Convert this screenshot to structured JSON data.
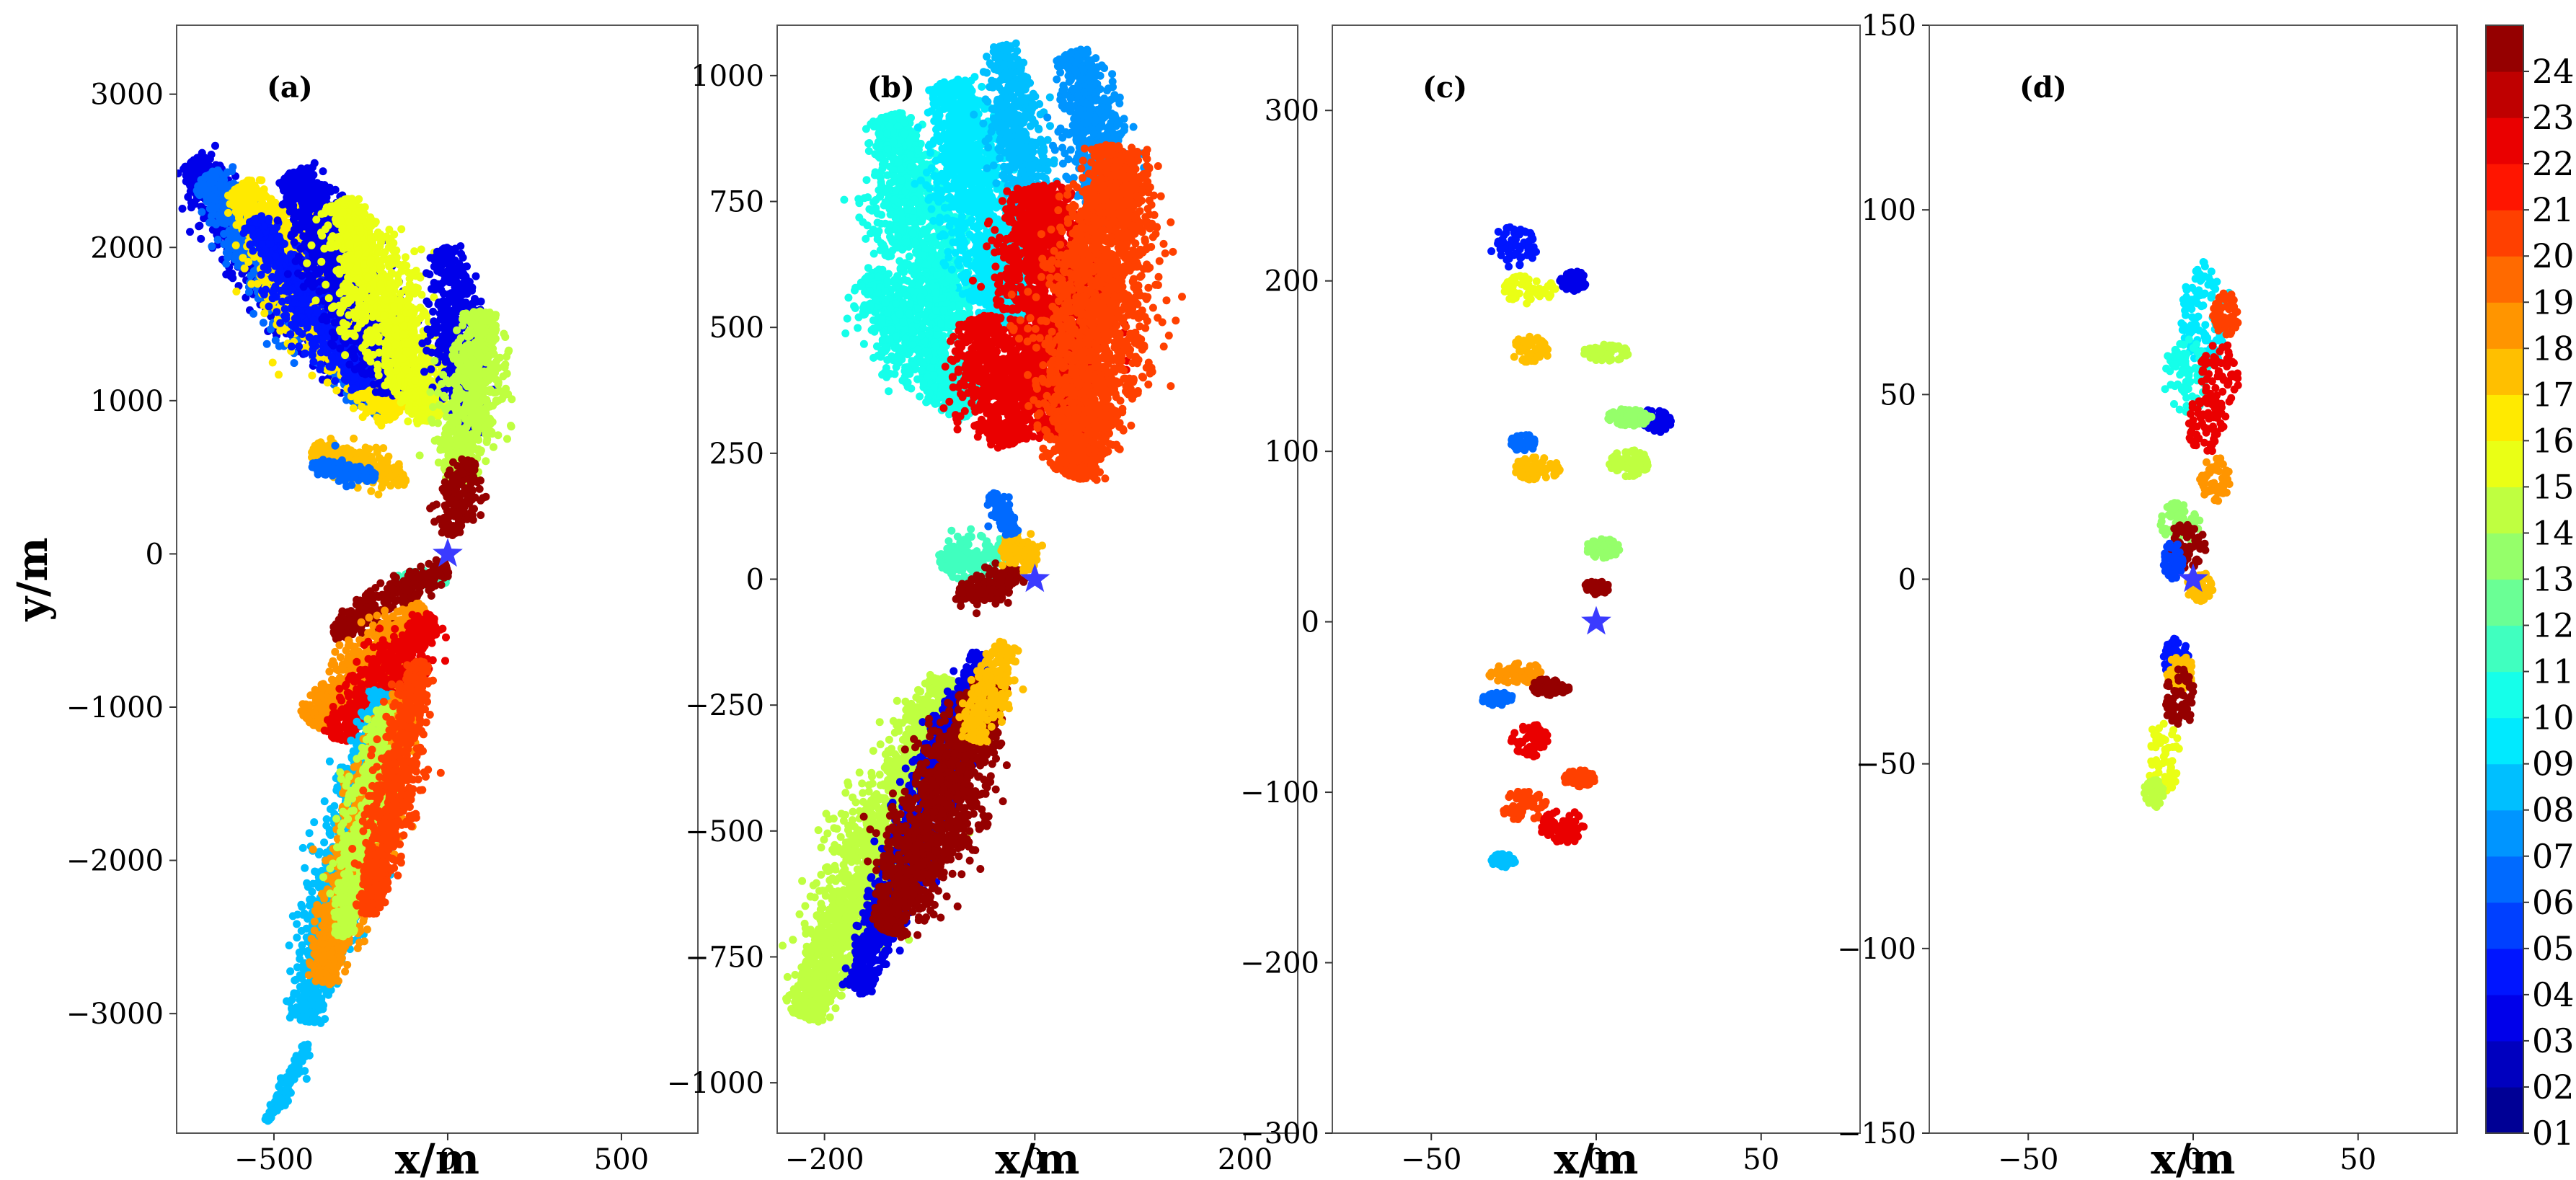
{
  "chart_data": [
    {
      "type": "scatter",
      "panel_label": "(a)",
      "xlabel": "x/m",
      "ylabel": "y/m",
      "xlim": [
        -780,
        720
      ],
      "ylim": [
        -3780,
        3450
      ],
      "xticks": [
        -500,
        0,
        500
      ],
      "xtick_labels": [
        "−500",
        "0",
        "500"
      ],
      "yticks": [
        -3000,
        -2000,
        -1000,
        0,
        1000,
        2000,
        3000
      ],
      "ytick_labels": [
        "−3000",
        "−2000",
        "−1000",
        "0",
        "1000",
        "2000",
        "3000"
      ],
      "origin_marker": {
        "shape": "star",
        "x": 0,
        "y": 0,
        "color": "#3b3bff"
      },
      "clusters": [
        {
          "hour": 3,
          "x1": -740,
          "y1": 2560,
          "x2": -200,
          "y2": 1060,
          "w": 0.07
        },
        {
          "hour": 6,
          "x1": -700,
          "y1": 2460,
          "x2": -170,
          "y2": 950,
          "w": 0.065
        },
        {
          "hour": 16,
          "x1": -600,
          "y1": 2400,
          "x2": -150,
          "y2": 900,
          "w": 0.075
        },
        {
          "hour": 4,
          "x1": -560,
          "y1": 2180,
          "x2": -240,
          "y2": 1100,
          "w": 0.05
        },
        {
          "hour": 3,
          "x1": -440,
          "y1": 2500,
          "x2": -130,
          "y2": 1050,
          "w": 0.07
        },
        {
          "hour": 15,
          "x1": -310,
          "y1": 2300,
          "x2": -40,
          "y2": 880,
          "w": 0.075
        },
        {
          "hour": 3,
          "x1": 0,
          "y1": 2000,
          "x2": 60,
          "y2": 780,
          "w": 0.05
        },
        {
          "hour": 14,
          "x1": 110,
          "y1": 1580,
          "x2": 30,
          "y2": 480,
          "w": 0.06
        },
        {
          "hour": 24,
          "x1": 60,
          "y1": 620,
          "x2": 0,
          "y2": 120,
          "w": 0.04
        },
        {
          "hour": 17,
          "x1": -390,
          "y1": 680,
          "x2": -120,
          "y2": 480,
          "w": 0.035
        },
        {
          "hour": 6,
          "x1": -390,
          "y1": 580,
          "x2": -210,
          "y2": 500,
          "w": 0.02
        },
        {
          "hour": 11,
          "x1": -150,
          "y1": -170,
          "x2": 0,
          "y2": -160,
          "w": 0.015
        },
        {
          "hour": 24,
          "x1": -330,
          "y1": -520,
          "x2": 0,
          "y2": -80,
          "w": 0.035
        },
        {
          "hour": 18,
          "x1": -400,
          "y1": -1100,
          "x2": -70,
          "y2": -350,
          "w": 0.05
        },
        {
          "hour": 22,
          "x1": -330,
          "y1": -1200,
          "x2": -40,
          "y2": -420,
          "w": 0.05
        },
        {
          "hour": 8,
          "x1": -410,
          "y1": -3050,
          "x2": -180,
          "y2": -900,
          "w": 0.055
        },
        {
          "hour": 18,
          "x1": -360,
          "y1": -2800,
          "x2": -130,
          "y2": -920,
          "w": 0.055
        },
        {
          "hour": 14,
          "x1": -300,
          "y1": -2500,
          "x2": -180,
          "y2": -1000,
          "w": 0.04
        },
        {
          "hour": 20,
          "x1": -230,
          "y1": -2350,
          "x2": -80,
          "y2": -700,
          "w": 0.045
        },
        {
          "hour": 8,
          "x1": -520,
          "y1": -3700,
          "x2": -400,
          "y2": -3200,
          "w": 0.015
        }
      ]
    },
    {
      "type": "scatter",
      "panel_label": "(b)",
      "xlabel": "x/m",
      "ylabel": "",
      "xlim": [
        -245,
        250
      ],
      "ylim": [
        -1100,
        1100
      ],
      "xticks": [
        -200,
        0,
        200
      ],
      "xtick_labels": [
        "−200",
        "0",
        "200"
      ],
      "yticks": [
        -1000,
        -750,
        -500,
        -250,
        0,
        250,
        500,
        750,
        1000
      ],
      "ytick_labels": [
        "−1000",
        "−750",
        "−500",
        "−250",
        "0",
        "250",
        "500",
        "750",
        "1000"
      ],
      "origin_marker": {
        "shape": "star",
        "x": 0,
        "y": 0,
        "color": "#3b3bff"
      },
      "clusters": [
        {
          "hour": 10,
          "x1": -140,
          "y1": 920,
          "x2": -80,
          "y2": 500,
          "w": 0.08
        },
        {
          "hour": 9,
          "x1": -80,
          "y1": 990,
          "x2": -25,
          "y2": 500,
          "w": 0.08
        },
        {
          "hour": 10,
          "x1": -160,
          "y1": 600,
          "x2": -60,
          "y2": 330,
          "w": 0.07
        },
        {
          "hour": 8,
          "x1": -30,
          "y1": 1060,
          "x2": 0,
          "y2": 700,
          "w": 0.05
        },
        {
          "hour": 7,
          "x1": 40,
          "y1": 1050,
          "x2": 75,
          "y2": 700,
          "w": 0.06
        },
        {
          "hour": 22,
          "x1": -55,
          "y1": 520,
          "x2": -20,
          "y2": 270,
          "w": 0.08
        },
        {
          "hour": 22,
          "x1": 0,
          "y1": 780,
          "x2": 30,
          "y2": 280,
          "w": 0.1
        },
        {
          "hour": 20,
          "x1": 80,
          "y1": 860,
          "x2": 40,
          "y2": 200,
          "w": 0.1
        },
        {
          "hour": 11,
          "x1": -90,
          "y1": 30,
          "x2": -20,
          "y2": 60,
          "w": 0.04
        },
        {
          "hour": 24,
          "x1": -75,
          "y1": -40,
          "x2": -10,
          "y2": 10,
          "w": 0.035
        },
        {
          "hour": 17,
          "x1": -25,
          "y1": 90,
          "x2": -5,
          "y2": 20,
          "w": 0.03
        },
        {
          "hour": 6,
          "x1": -40,
          "y1": 170,
          "x2": -20,
          "y2": 90,
          "w": 0.02
        },
        {
          "hour": 14,
          "x1": -220,
          "y1": -870,
          "x2": -80,
          "y2": -200,
          "w": 0.08
        },
        {
          "hour": 3,
          "x1": -170,
          "y1": -820,
          "x2": -50,
          "y2": -150,
          "w": 0.05
        },
        {
          "hour": 24,
          "x1": -140,
          "y1": -700,
          "x2": -40,
          "y2": -200,
          "w": 0.075
        },
        {
          "hour": 17,
          "x1": -60,
          "y1": -320,
          "x2": -25,
          "y2": -130,
          "w": 0.04
        }
      ]
    },
    {
      "type": "scatter",
      "panel_label": "(c)",
      "xlabel": "x/m",
      "ylabel": "",
      "xlim": [
        -80,
        80
      ],
      "ylim": [
        -300,
        350
      ],
      "xticks": [
        -50,
        0,
        50
      ],
      "xtick_labels": [
        "−50",
        "0",
        "50"
      ],
      "yticks": [
        -300,
        -200,
        -100,
        0,
        100,
        200,
        300
      ],
      "ytick_labels": [
        "−300",
        "−200",
        "−100",
        "0",
        "100",
        "200",
        "300"
      ],
      "origin_marker": {
        "shape": "star",
        "x": 0,
        "y": 0,
        "color": "#3b3bff"
      },
      "clusters": [
        {
          "hour": 4,
          "x": -25,
          "y": 220,
          "rx": 7,
          "ry": 12
        },
        {
          "hour": 15,
          "x": -20,
          "y": 195,
          "rx": 8,
          "ry": 9
        },
        {
          "hour": 17,
          "x": -20,
          "y": 160,
          "rx": 6,
          "ry": 8
        },
        {
          "hour": 3,
          "x": -7,
          "y": 200,
          "rx": 4,
          "ry": 6
        },
        {
          "hour": 14,
          "x": 3,
          "y": 158,
          "rx": 7,
          "ry": 5
        },
        {
          "hour": 3,
          "x": 18,
          "y": 118,
          "rx": 5,
          "ry": 7
        },
        {
          "hour": 13,
          "x": 10,
          "y": 120,
          "rx": 7,
          "ry": 5
        },
        {
          "hour": 14,
          "x": 10,
          "y": 93,
          "rx": 6,
          "ry": 8
        },
        {
          "hour": 17,
          "x": -18,
          "y": 90,
          "rx": 7,
          "ry": 7
        },
        {
          "hour": 6,
          "x": -22,
          "y": 105,
          "rx": 4,
          "ry": 5
        },
        {
          "hour": 13,
          "x": 2,
          "y": 43,
          "rx": 5,
          "ry": 6
        },
        {
          "hour": 24,
          "x": 0,
          "y": 20,
          "rx": 4,
          "ry": 4
        },
        {
          "hour": 18,
          "x": -24,
          "y": -30,
          "rx": 9,
          "ry": 6
        },
        {
          "hour": 24,
          "x": -14,
          "y": -38,
          "rx": 6,
          "ry": 5
        },
        {
          "hour": 22,
          "x": -20,
          "y": -70,
          "rx": 6,
          "ry": 10
        },
        {
          "hour": 20,
          "x": -22,
          "y": -108,
          "rx": 7,
          "ry": 9
        },
        {
          "hour": 22,
          "x": -10,
          "y": -120,
          "rx": 7,
          "ry": 10
        },
        {
          "hour": 8,
          "x": -28,
          "y": -140,
          "rx": 4,
          "ry": 4
        },
        {
          "hour": 20,
          "x": -5,
          "y": -92,
          "rx": 5,
          "ry": 5
        },
        {
          "hour": 6,
          "x": -30,
          "y": -45,
          "rx": 5,
          "ry": 4
        }
      ]
    },
    {
      "type": "scatter",
      "panel_label": "(d)",
      "xlabel": "x/m",
      "ylabel": "",
      "xlim": [
        -80,
        80
      ],
      "ylim": [
        -150,
        150
      ],
      "xticks": [
        -50,
        0,
        50
      ],
      "xtick_labels": [
        "−50",
        "0",
        "50"
      ],
      "yticks": [
        -150,
        -100,
        -50,
        0,
        50,
        100,
        150
      ],
      "ytick_labels": [
        "−150",
        "−100",
        "−50",
        "0",
        "50",
        "100",
        "150"
      ],
      "origin_marker": {
        "shape": "star",
        "x": 0,
        "y": 0,
        "color": "#3b3bff"
      },
      "clusters": [
        {
          "hour": 9,
          "x": 4,
          "y": 72,
          "rx": 8,
          "ry": 14
        },
        {
          "hour": 10,
          "x": -2,
          "y": 55,
          "rx": 7,
          "ry": 10
        },
        {
          "hour": 20,
          "x": 10,
          "y": 72,
          "rx": 4,
          "ry": 6
        },
        {
          "hour": 22,
          "x": 8,
          "y": 55,
          "rx": 6,
          "ry": 10
        },
        {
          "hour": 22,
          "x": 4,
          "y": 42,
          "rx": 6,
          "ry": 8
        },
        {
          "hour": 18,
          "x": 7,
          "y": 27,
          "rx": 5,
          "ry": 6
        },
        {
          "hour": 13,
          "x": -4,
          "y": 15,
          "rx": 6,
          "ry": 6
        },
        {
          "hour": 24,
          "x": -2,
          "y": 9,
          "rx": 6,
          "ry": 6
        },
        {
          "hour": 5,
          "x": -6,
          "y": 5,
          "rx": 3,
          "ry": 5
        },
        {
          "hour": 17,
          "x": 2,
          "y": -2,
          "rx": 4,
          "ry": 4
        },
        {
          "hour": 4,
          "x": -5,
          "y": -22,
          "rx": 4,
          "ry": 6
        },
        {
          "hour": 17,
          "x": -4,
          "y": -25,
          "rx": 4,
          "ry": 5
        },
        {
          "hour": 24,
          "x": -4,
          "y": -32,
          "rx": 5,
          "ry": 8
        },
        {
          "hour": 15,
          "x": -9,
          "y": -48,
          "rx": 5,
          "ry": 10
        },
        {
          "hour": 14,
          "x": -12,
          "y": -58,
          "rx": 3,
          "ry": 4
        }
      ]
    }
  ],
  "colorbar": {
    "colormap": "jet",
    "hours_min": 1,
    "hours_max": 24,
    "labels": [
      "01:00",
      "02:00",
      "03:00",
      "04:00",
      "05:00",
      "06:00",
      "07:00",
      "08:00",
      "09:00",
      "10:00",
      "11:00",
      "12:00",
      "13:00",
      "14:00",
      "15:00",
      "16:00",
      "17:00",
      "18:00",
      "19:00",
      "20:00",
      "21:00",
      "22:00",
      "23:00",
      "24:00"
    ]
  }
}
